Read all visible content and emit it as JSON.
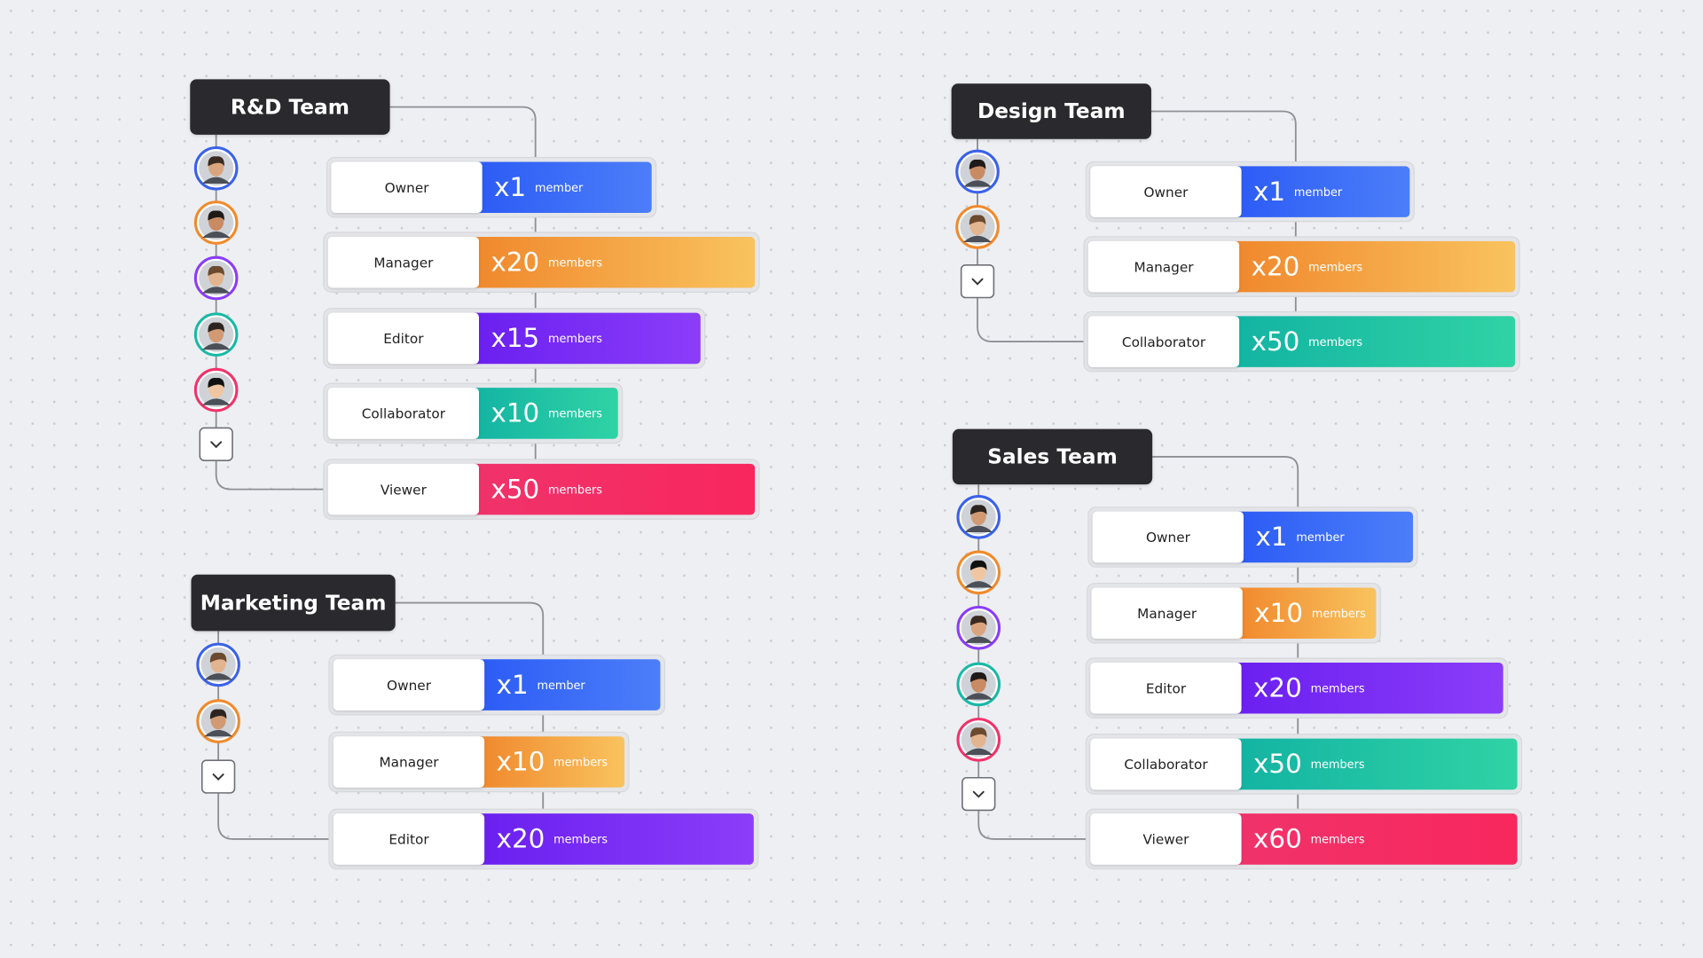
{
  "teams": [
    {
      "title": "R&D Team",
      "roles": [
        {
          "label": "Owner",
          "count": "x1",
          "unit": "member",
          "colors": [
            "#2b5bf5",
            "#4c7ef9"
          ]
        },
        {
          "label": "Manager",
          "count": "x20",
          "unit": "members",
          "colors": [
            "#f0872c",
            "#f9c35e"
          ]
        },
        {
          "label": "Editor",
          "count": "x15",
          "unit": "members",
          "colors": [
            "#6a1ff0",
            "#8b3df9"
          ]
        },
        {
          "label": "Collaborator",
          "count": "x10",
          "unit": "members",
          "colors": [
            "#13b3a3",
            "#2fd3a4"
          ]
        },
        {
          "label": "Viewer",
          "count": "x50",
          "unit": "members",
          "colors": [
            "#f0336b",
            "#f8275d"
          ]
        }
      ]
    },
    {
      "title": "Design Team",
      "roles": [
        {
          "label": "Owner",
          "count": "x1",
          "unit": "member",
          "colors": [
            "#2b5bf5",
            "#4c7ef9"
          ]
        },
        {
          "label": "Manager",
          "count": "x20",
          "unit": "members",
          "colors": [
            "#f0872c",
            "#f9c35e"
          ]
        },
        {
          "label": "Collaborator",
          "count": "x50",
          "unit": "members",
          "colors": [
            "#13b3a3",
            "#2fd3a4"
          ]
        }
      ]
    },
    {
      "title": "Marketing Team",
      "roles": [
        {
          "label": "Owner",
          "count": "x1",
          "unit": "member",
          "colors": [
            "#2b5bf5",
            "#4c7ef9"
          ]
        },
        {
          "label": "Manager",
          "count": "x10",
          "unit": "members",
          "colors": [
            "#f0872c",
            "#f9c35e"
          ]
        },
        {
          "label": "Editor",
          "count": "x20",
          "unit": "members",
          "colors": [
            "#6a1ff0",
            "#8b3df9"
          ]
        }
      ]
    },
    {
      "title": "Sales Team",
      "roles": [
        {
          "label": "Owner",
          "count": "x1",
          "unit": "member",
          "colors": [
            "#2b5bf5",
            "#4c7ef9"
          ]
        },
        {
          "label": "Manager",
          "count": "x10",
          "unit": "members",
          "colors": [
            "#f0872c",
            "#f9c35e"
          ]
        },
        {
          "label": "Editor",
          "count": "x20",
          "unit": "members",
          "colors": [
            "#6a1ff0",
            "#8b3df9"
          ]
        },
        {
          "label": "Collaborator",
          "count": "x50",
          "unit": "members",
          "colors": [
            "#13b3a3",
            "#2fd3a4"
          ]
        },
        {
          "label": "Viewer",
          "count": "x60",
          "unit": "members",
          "colors": [
            "#f0336b",
            "#f8275d"
          ]
        }
      ]
    }
  ]
}
